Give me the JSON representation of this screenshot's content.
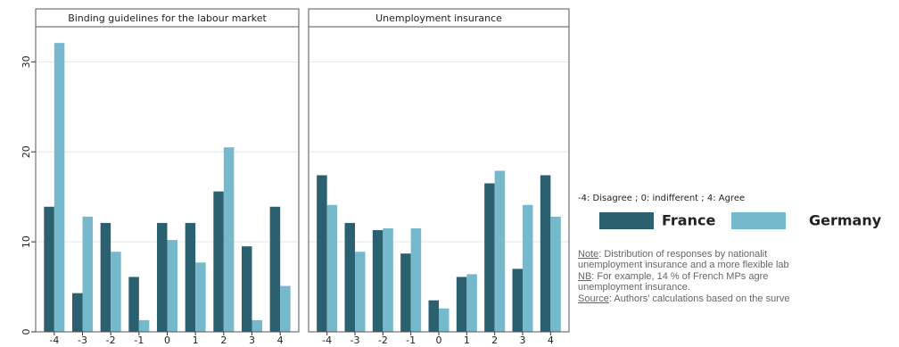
{
  "chart_data": [
    {
      "type": "bar",
      "title": "Binding guidelines for the labour market",
      "categories": [
        "-4",
        "-3",
        "-2",
        "-1",
        "0",
        "1",
        "2",
        "3",
        "4"
      ],
      "series": [
        {
          "name": "France",
          "color": "#2a6070",
          "values": [
            13.9,
            4.3,
            12.1,
            6.1,
            12.1,
            12.1,
            15.6,
            9.5,
            13.9
          ]
        },
        {
          "name": "Germany",
          "color": "#76b8cc",
          "values": [
            32.1,
            12.8,
            8.9,
            1.3,
            10.2,
            7.7,
            20.5,
            1.3,
            5.1
          ]
        }
      ],
      "ylim": [
        0,
        33.9
      ],
      "yticks": [
        0,
        10,
        20,
        30
      ],
      "grid": true,
      "ytick_labels": true
    },
    {
      "type": "bar",
      "title": "Unemployment insurance",
      "categories": [
        "-4",
        "-3",
        "-2",
        "-1",
        "0",
        "1",
        "2",
        "3",
        "4"
      ],
      "series": [
        {
          "name": "France",
          "color": "#2a6070",
          "values": [
            17.4,
            12.1,
            11.3,
            8.7,
            3.5,
            6.1,
            16.5,
            7.0,
            17.4
          ]
        },
        {
          "name": "Germany",
          "color": "#76b8cc",
          "values": [
            14.1,
            8.9,
            11.5,
            11.5,
            2.6,
            6.4,
            17.9,
            14.1,
            12.8
          ]
        }
      ],
      "ylim": [
        0,
        33.9
      ],
      "yticks": [
        0,
        10,
        20,
        30
      ],
      "grid": true,
      "ytick_labels": false
    }
  ],
  "scale_note": "-4: Disagree ;  0: indifferent ;  4: Agree",
  "notes": [
    [
      {
        "text": "Note",
        "underline": true
      },
      {
        "text": ": Distribution of responses by nationalit"
      }
    ],
    [
      {
        "text": "unemployment insurance and a more flexible lab"
      }
    ],
    [
      {
        "text": "NB",
        "underline": true
      },
      {
        "text": ": For example, 14 % of French MPs agre"
      }
    ],
    [
      {
        "text": "unemployment insurance."
      }
    ],
    [
      {
        "text": "Source",
        "underline": true
      },
      {
        "text": ": Authors’ calculations based on the surve"
      }
    ]
  ]
}
